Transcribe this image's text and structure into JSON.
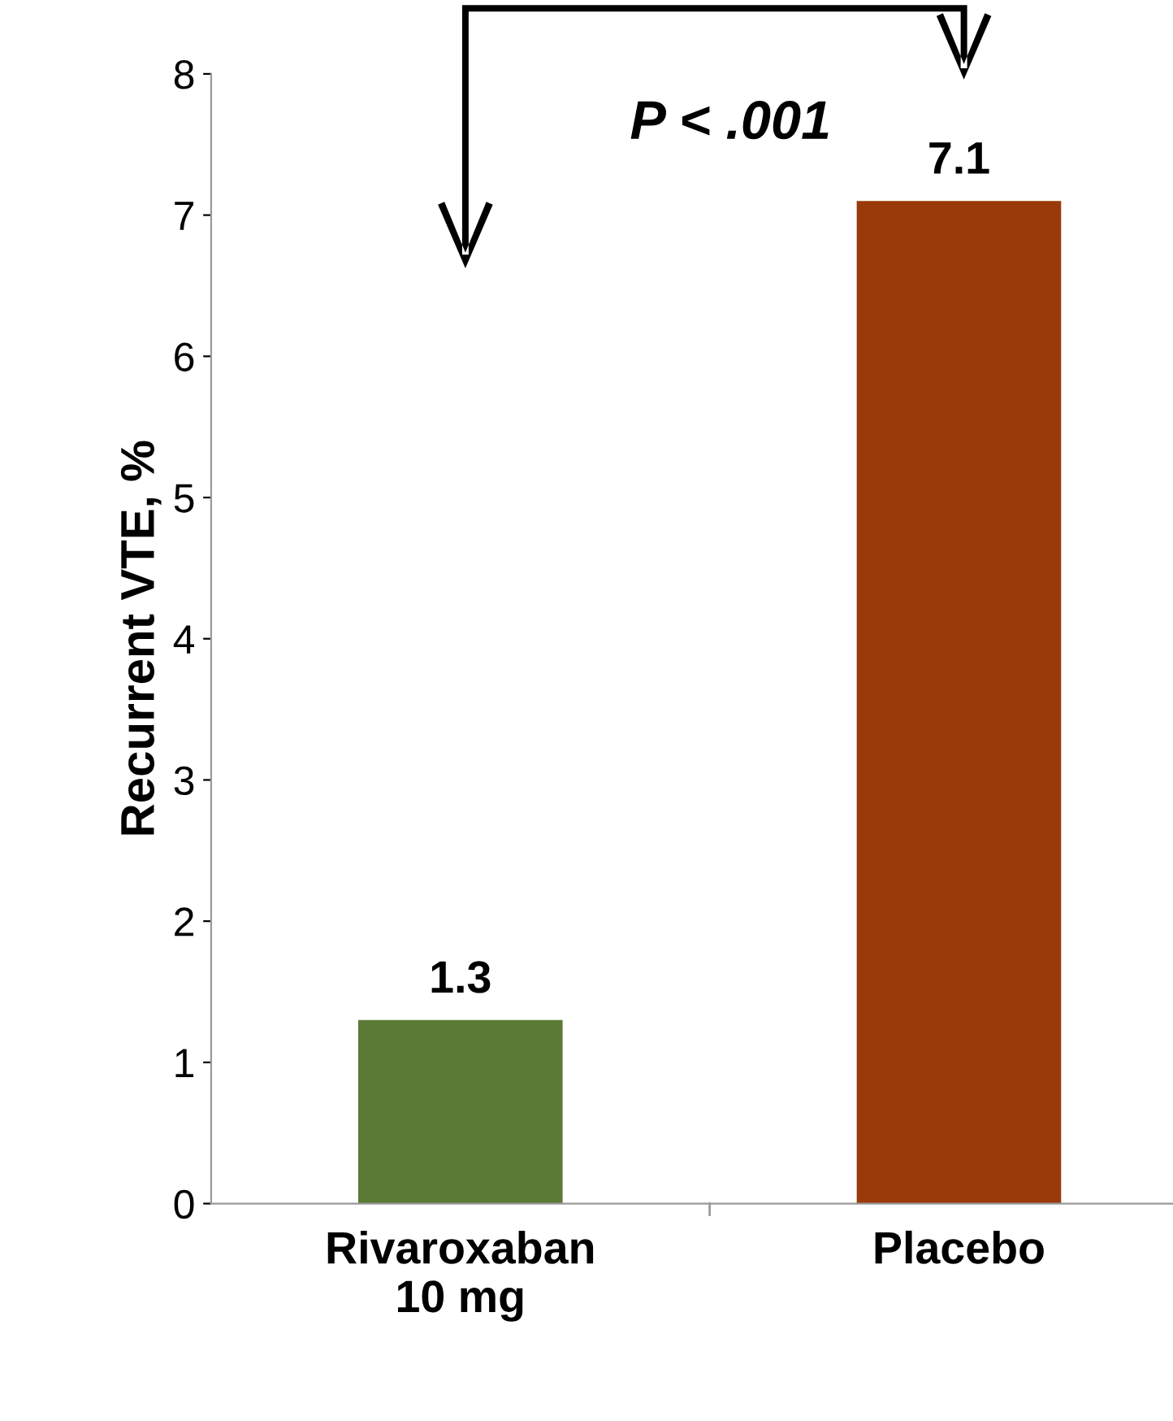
{
  "chart_data": {
    "type": "bar",
    "ylabel": "Recurrent VTE, %",
    "categories": [
      "Rivaroxaban\n10 mg",
      "Placebo"
    ],
    "values": [
      1.3,
      7.1
    ],
    "colors": [
      "#5b7a35",
      "#9a3a0b"
    ],
    "ylim": [
      0,
      8
    ],
    "yticks": [
      0,
      1,
      2,
      3,
      4,
      5,
      6,
      7,
      8
    ],
    "data_labels": true,
    "grid": false,
    "annotations": [
      "P < .001"
    ]
  }
}
